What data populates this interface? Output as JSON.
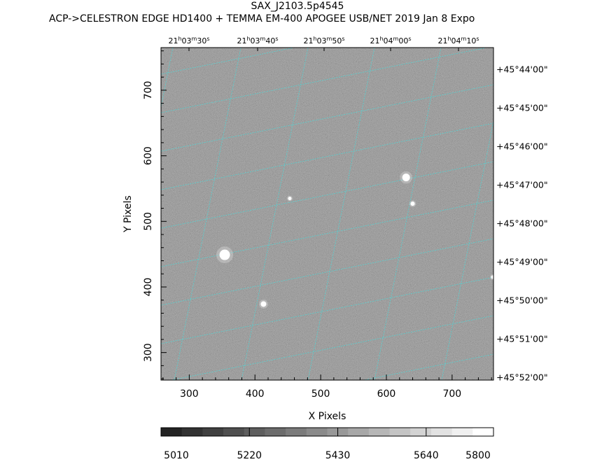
{
  "title": "SAX_J2103.5p4545",
  "subtitle": "ACP->CELESTRON EDGE HD1400 + TEMMA EM-400 APOGEE USB/NET   2019 Jan  8    Expo",
  "chart_data": {
    "type": "image",
    "xlabel": "X Pixels",
    "ylabel": "Y Pixels",
    "xlim": [
      257,
      763
    ],
    "ylim": [
      258,
      765
    ],
    "xticks": [
      300,
      400,
      500,
      600,
      700
    ],
    "yticks": [
      300,
      400,
      500,
      600,
      700
    ],
    "ra_top_labels": [
      {
        "h": "21",
        "m": "03",
        "s": "30"
      },
      {
        "h": "21",
        "m": "03",
        "s": "40"
      },
      {
        "h": "21",
        "m": "03",
        "s": "50"
      },
      {
        "h": "21",
        "m": "04",
        "s": "00"
      },
      {
        "h": "21",
        "m": "04",
        "s": "10"
      }
    ],
    "dec_right_labels": [
      "+45°44'00\"",
      "+45°45'00\"",
      "+45°46'00\"",
      "+45°47'00\"",
      "+45°48'00\"",
      "+45°49'00\"",
      "+45°50'00\"",
      "+45°51'00\"",
      "+45°52'00\""
    ],
    "colorbar": {
      "labels": [
        "5010",
        "5220",
        "5430",
        "5640",
        "5800"
      ],
      "min": 5010,
      "max": 5800,
      "steps": 16
    },
    "stars": [
      {
        "x": 354,
        "y": 449,
        "size": 7.5
      },
      {
        "x": 630,
        "y": 567,
        "size": 5.5
      },
      {
        "x": 413,
        "y": 374,
        "size": 4
      },
      {
        "x": 640,
        "y": 527,
        "size": 3
      },
      {
        "x": 453,
        "y": 535,
        "size": 2.5
      },
      {
        "x": 762,
        "y": 415,
        "size": 2.5
      }
    ],
    "grid_color": "#4fd6d6",
    "background_gray": "#7c7c7c"
  }
}
